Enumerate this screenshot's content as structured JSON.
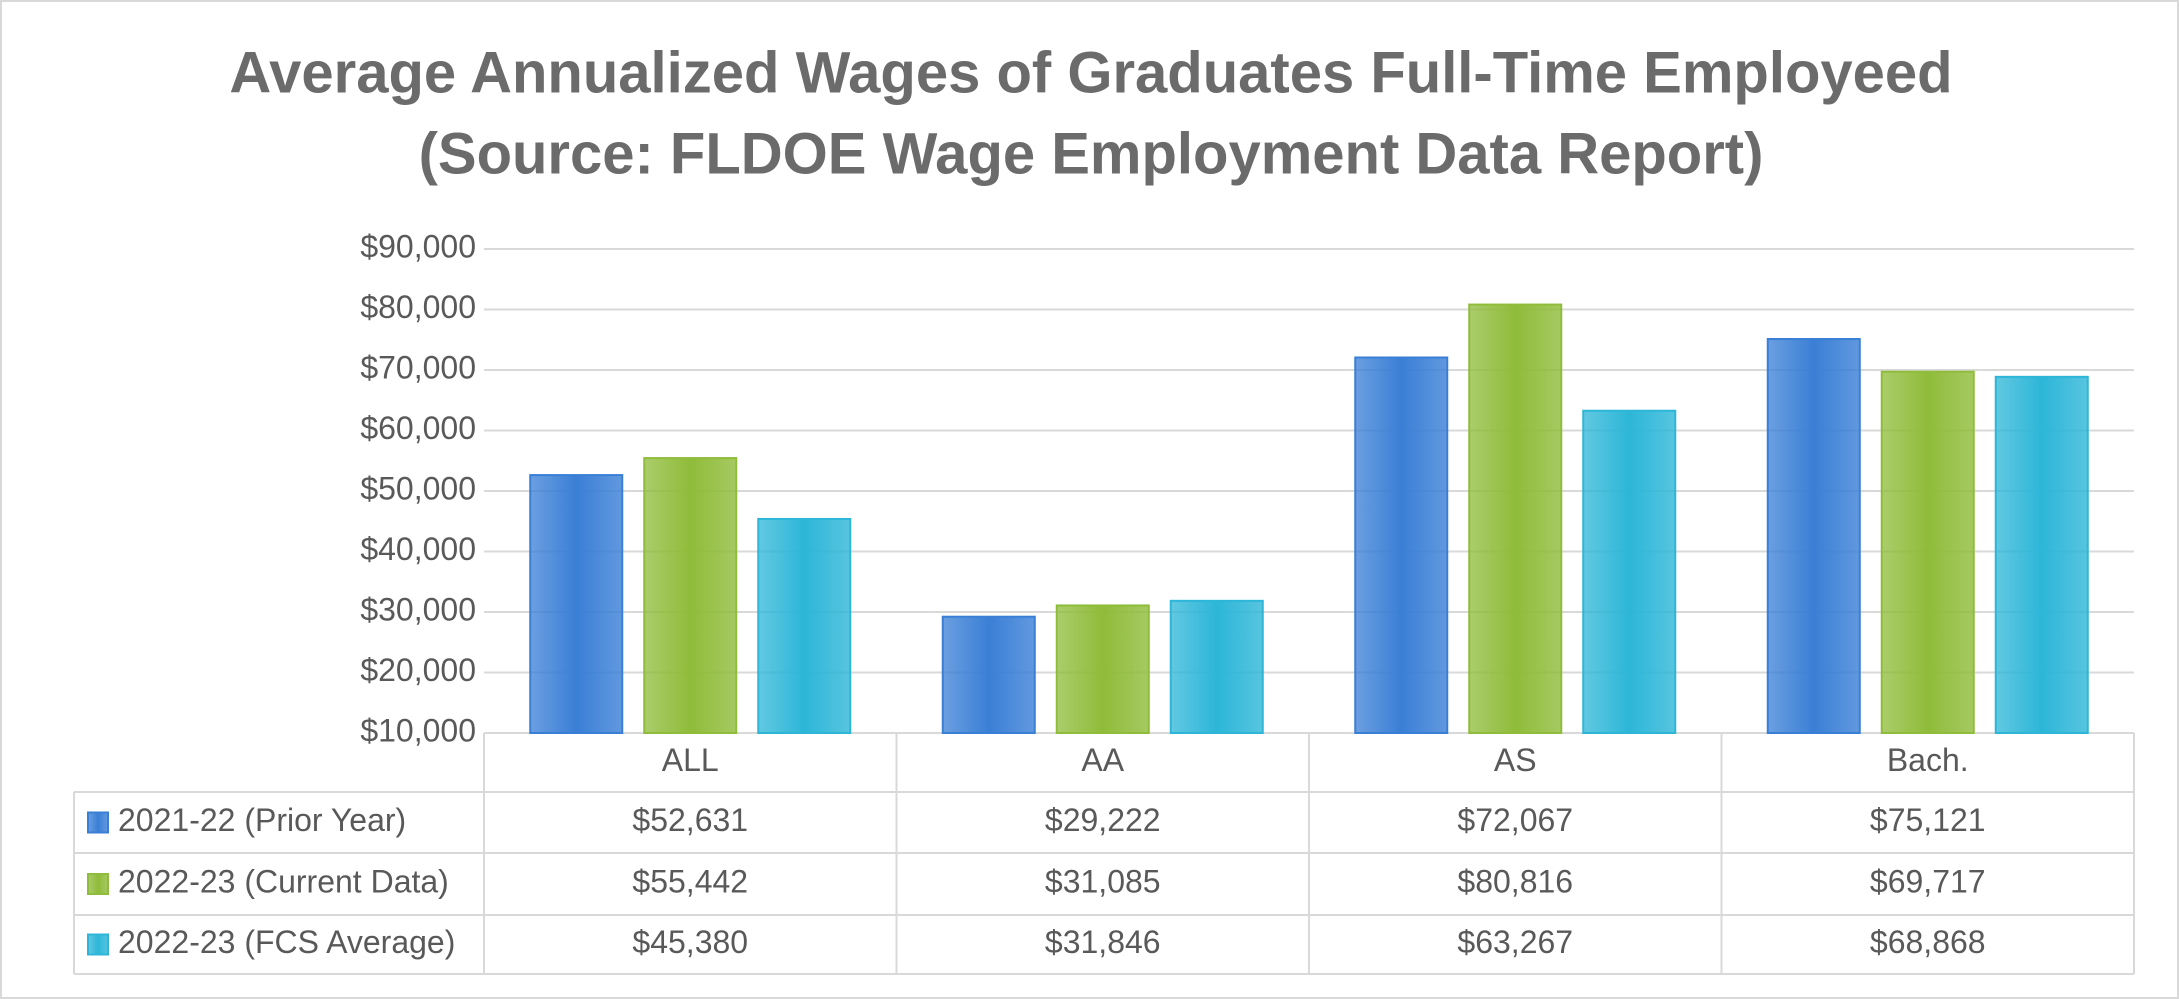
{
  "chart_data": {
    "type": "bar",
    "title": "Average Annualized Wages of Graduates Full-Time Employeed",
    "subtitle": "(Source: FLDOE Wage Employment Data Report)",
    "categories": [
      "ALL",
      "AA",
      "AS",
      "Bach."
    ],
    "series": [
      {
        "name": "2021-22 (Prior Year)",
        "color": "#3a7fd6",
        "values": [
          52631,
          29222,
          72067,
          75121
        ],
        "value_labels": [
          "$52,631",
          "$29,222",
          "$72,067",
          "$75,121"
        ]
      },
      {
        "name": "2022-23 (Current Data)",
        "color": "#8fbc3a",
        "values": [
          55442,
          31085,
          80816,
          69717
        ],
        "value_labels": [
          "$55,442",
          "$31,085",
          "$80,816",
          "$69,717"
        ]
      },
      {
        "name": "2022-23 (FCS Average)",
        "color": "#2db6d8",
        "values": [
          45380,
          31846,
          63267,
          68868
        ],
        "value_labels": [
          "$45,380",
          "$31,846",
          "$63,267",
          "$68,868"
        ]
      }
    ],
    "ylim": [
      10000,
      90000
    ],
    "yticks": [
      {
        "value": 10000,
        "label": "$10,000"
      },
      {
        "value": 20000,
        "label": "$20,000"
      },
      {
        "value": 30000,
        "label": "$30,000"
      },
      {
        "value": 40000,
        "label": "$40,000"
      },
      {
        "value": 50000,
        "label": "$50,000"
      },
      {
        "value": 60000,
        "label": "$60,000"
      },
      {
        "value": 70000,
        "label": "$70,000"
      },
      {
        "value": 80000,
        "label": "$80,000"
      },
      {
        "value": 90000,
        "label": "$90,000"
      }
    ],
    "grid": true
  }
}
